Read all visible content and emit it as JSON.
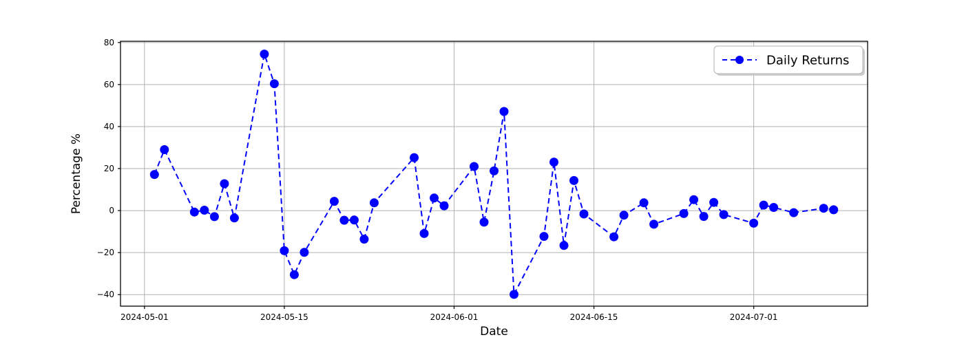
{
  "chart_data": {
    "type": "line",
    "title": "",
    "xlabel": "Date",
    "ylabel": "Percentage %",
    "grid": true,
    "legend": {
      "position": "upper-right",
      "entries": [
        {
          "label": "Daily Returns",
          "color": "#0000ff",
          "linestyle": "dashed",
          "marker": "circle"
        }
      ]
    },
    "x_ticks": [
      {
        "date": "2024-05-01",
        "label": "2024-05-01"
      },
      {
        "date": "2024-05-15",
        "label": "2024-05-15"
      },
      {
        "date": "2024-06-01",
        "label": "2024-06-01"
      },
      {
        "date": "2024-06-15",
        "label": "2024-06-15"
      },
      {
        "date": "2024-07-01",
        "label": "2024-07-01"
      }
    ],
    "y_ticks": [
      {
        "value": 80,
        "label": "80"
      },
      {
        "value": 60,
        "label": "60"
      },
      {
        "value": 40,
        "label": "40"
      },
      {
        "value": 20,
        "label": "20"
      },
      {
        "value": 0,
        "label": "0"
      },
      {
        "value": -20,
        "label": "−20"
      },
      {
        "value": -40,
        "label": "−40"
      }
    ],
    "ylim": [
      -45.5,
      80.6
    ],
    "xlim_days_from_epoch": [
      -2.4,
      72.4
    ],
    "x_epoch": "2024-05-01",
    "series": [
      {
        "name": "Daily Returns",
        "points": [
          [
            "2024-05-02",
            17.2
          ],
          [
            "2024-05-03",
            29.0
          ],
          [
            "2024-05-06",
            -0.7
          ],
          [
            "2024-05-07",
            0.2
          ],
          [
            "2024-05-08",
            -2.9
          ],
          [
            "2024-05-09",
            12.8
          ],
          [
            "2024-05-10",
            -3.5
          ],
          [
            "2024-05-13",
            74.5
          ],
          [
            "2024-05-14",
            60.4
          ],
          [
            "2024-05-15",
            -19.1
          ],
          [
            "2024-05-16",
            -30.5
          ],
          [
            "2024-05-17",
            -19.9
          ],
          [
            "2024-05-20",
            4.4
          ],
          [
            "2024-05-21",
            -4.6
          ],
          [
            "2024-05-22",
            -4.5
          ],
          [
            "2024-05-23",
            -13.6
          ],
          [
            "2024-05-24",
            3.7
          ],
          [
            "2024-05-28",
            25.2
          ],
          [
            "2024-05-29",
            -10.9
          ],
          [
            "2024-05-30",
            6.0
          ],
          [
            "2024-05-31",
            2.3
          ],
          [
            "2024-06-03",
            21.0
          ],
          [
            "2024-06-04",
            -5.5
          ],
          [
            "2024-06-05",
            18.9
          ],
          [
            "2024-06-06",
            47.2
          ],
          [
            "2024-06-07",
            -39.9
          ],
          [
            "2024-06-10",
            -12.3
          ],
          [
            "2024-06-11",
            23.1
          ],
          [
            "2024-06-12",
            -16.6
          ],
          [
            "2024-06-13",
            14.3
          ],
          [
            "2024-06-14",
            -1.6
          ],
          [
            "2024-06-17",
            -12.5
          ],
          [
            "2024-06-18",
            -2.2
          ],
          [
            "2024-06-20",
            3.7
          ],
          [
            "2024-06-21",
            -6.5
          ],
          [
            "2024-06-24",
            -1.4
          ],
          [
            "2024-06-25",
            5.2
          ],
          [
            "2024-06-26",
            -2.8
          ],
          [
            "2024-06-27",
            3.9
          ],
          [
            "2024-06-28",
            -1.9
          ],
          [
            "2024-07-01",
            -6.0
          ],
          [
            "2024-07-02",
            2.6
          ],
          [
            "2024-07-03",
            1.5
          ],
          [
            "2024-07-05",
            -1.0
          ],
          [
            "2024-07-08",
            1.1
          ],
          [
            "2024-07-09",
            0.4
          ]
        ]
      }
    ]
  },
  "colors": {
    "line": "#0000ff",
    "marker": "#0000ff",
    "grid": "#b0b0b0",
    "spine": "#000000",
    "text": "#000000",
    "legend_border": "#b3b3b3",
    "legend_bg": "#ffffff",
    "background": "#ffffff"
  }
}
